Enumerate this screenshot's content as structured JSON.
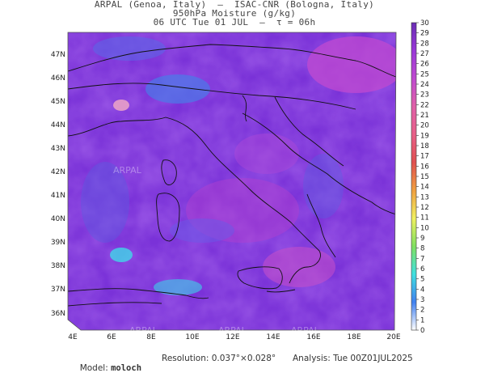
{
  "header": {
    "line1": "ARPAL (Genoa, Italy)  —  ISAC-CNR (Bologna, Italy)",
    "line2": "950hPa Moisture (g/kg)",
    "line3": "06 UTC Tue 01 JUL  —  τ = 06h"
  },
  "map": {
    "lat_labels": [
      "47N",
      "46N",
      "45N",
      "44N",
      "43N",
      "42N",
      "41N",
      "40N",
      "39N",
      "38N",
      "37N",
      "36N"
    ],
    "lon_labels": [
      "4E",
      "6E",
      "8E",
      "10E",
      "12E",
      "14E",
      "16E",
      "18E",
      "20E"
    ],
    "watermark": "ARPAL"
  },
  "colorbar": {
    "labels": [
      "30",
      "29",
      "28",
      "27",
      "26",
      "25",
      "24",
      "23",
      "22",
      "21",
      "20",
      "19",
      "18",
      "17",
      "16",
      "15",
      "14",
      "13",
      "12",
      "11",
      "10",
      "9",
      "8",
      "7",
      "6",
      "5",
      "4",
      "3",
      "2",
      "1",
      "0"
    ],
    "colors": {
      "high": "#6a2db5",
      "mid_high": "#9a38d8",
      "mid": "#c04ad0",
      "mid_low": "#e060a8",
      "pink": "#e86088",
      "red": "#e05050",
      "orange": "#f0a040",
      "yellow": "#f0f060",
      "green": "#80e060",
      "cyan": "#40e0e0",
      "blue": "#4080f0",
      "low": "#ffffff"
    }
  },
  "footer": {
    "model_label": "Model: ",
    "model_name": "moloch",
    "resolution": "Resolution: 0.037°×0.028°",
    "analysis": "Analysis: Tue 00Z01JUL2025"
  }
}
